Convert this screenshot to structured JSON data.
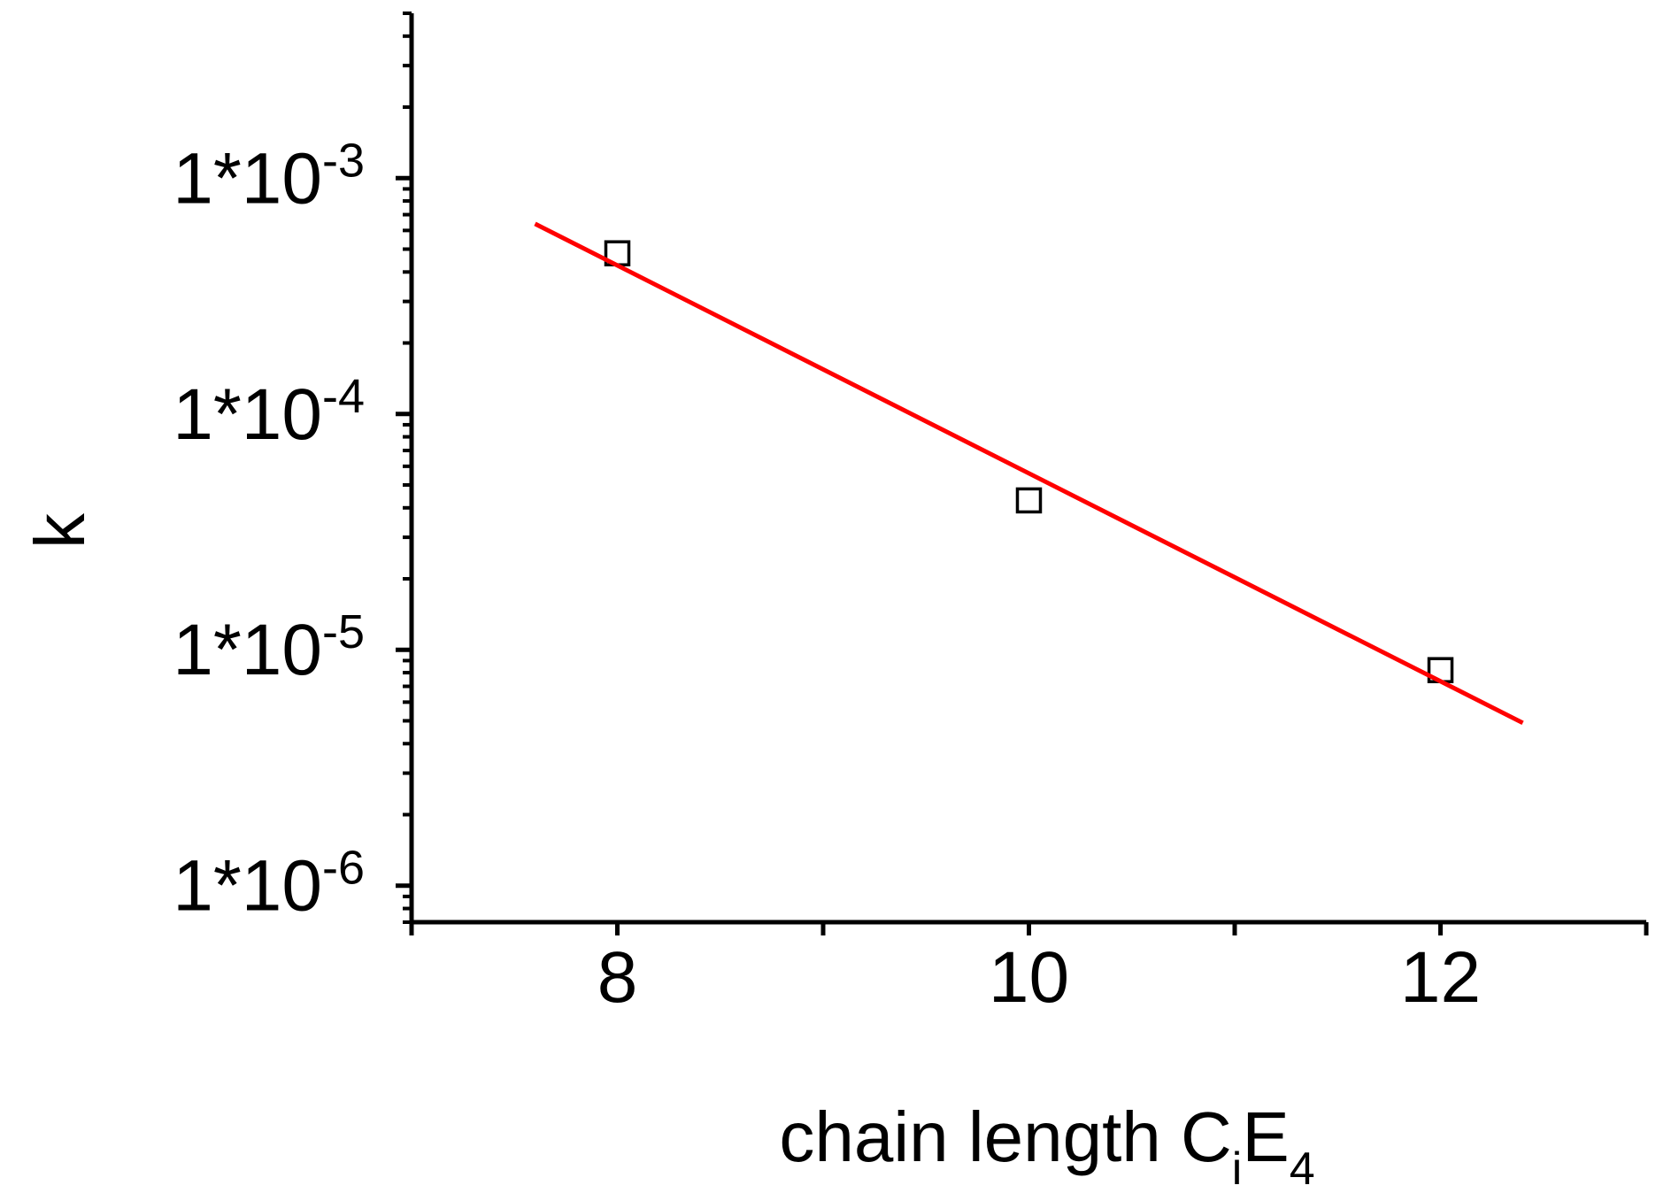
{
  "chart_data": {
    "type": "scatter",
    "xlabel": {
      "main": "chain length C",
      "sub1": "i",
      "mid": "E",
      "sub2": "4"
    },
    "ylabel": "k",
    "xlim": [
      7,
      13
    ],
    "ylim": [
      7e-07,
      0.005
    ],
    "y_scale": "log",
    "x_ticks": [
      {
        "value": 8,
        "label": "8"
      },
      {
        "value": 10,
        "label": "10"
      },
      {
        "value": 12,
        "label": "12"
      }
    ],
    "y_ticks": [
      {
        "value": 0.001,
        "base": "1*10",
        "exp": "-3"
      },
      {
        "value": 0.0001,
        "base": "1*10",
        "exp": "-4"
      },
      {
        "value": 1e-05,
        "base": "1*10",
        "exp": "-5"
      },
      {
        "value": 1e-06,
        "base": "1*10",
        "exp": "-6"
      }
    ],
    "series": [
      {
        "type": "scatter",
        "marker": "open-square",
        "color": "#000000",
        "x": [
          8,
          10,
          12
        ],
        "y": [
          0.00048,
          4.3e-05,
          8.2e-06
        ]
      },
      {
        "type": "line",
        "color": "#ff0000",
        "x": [
          7.6,
          12.4
        ],
        "y": [
          0.00064,
          4.9e-06
        ]
      }
    ],
    "grid": false,
    "legend": "none"
  }
}
